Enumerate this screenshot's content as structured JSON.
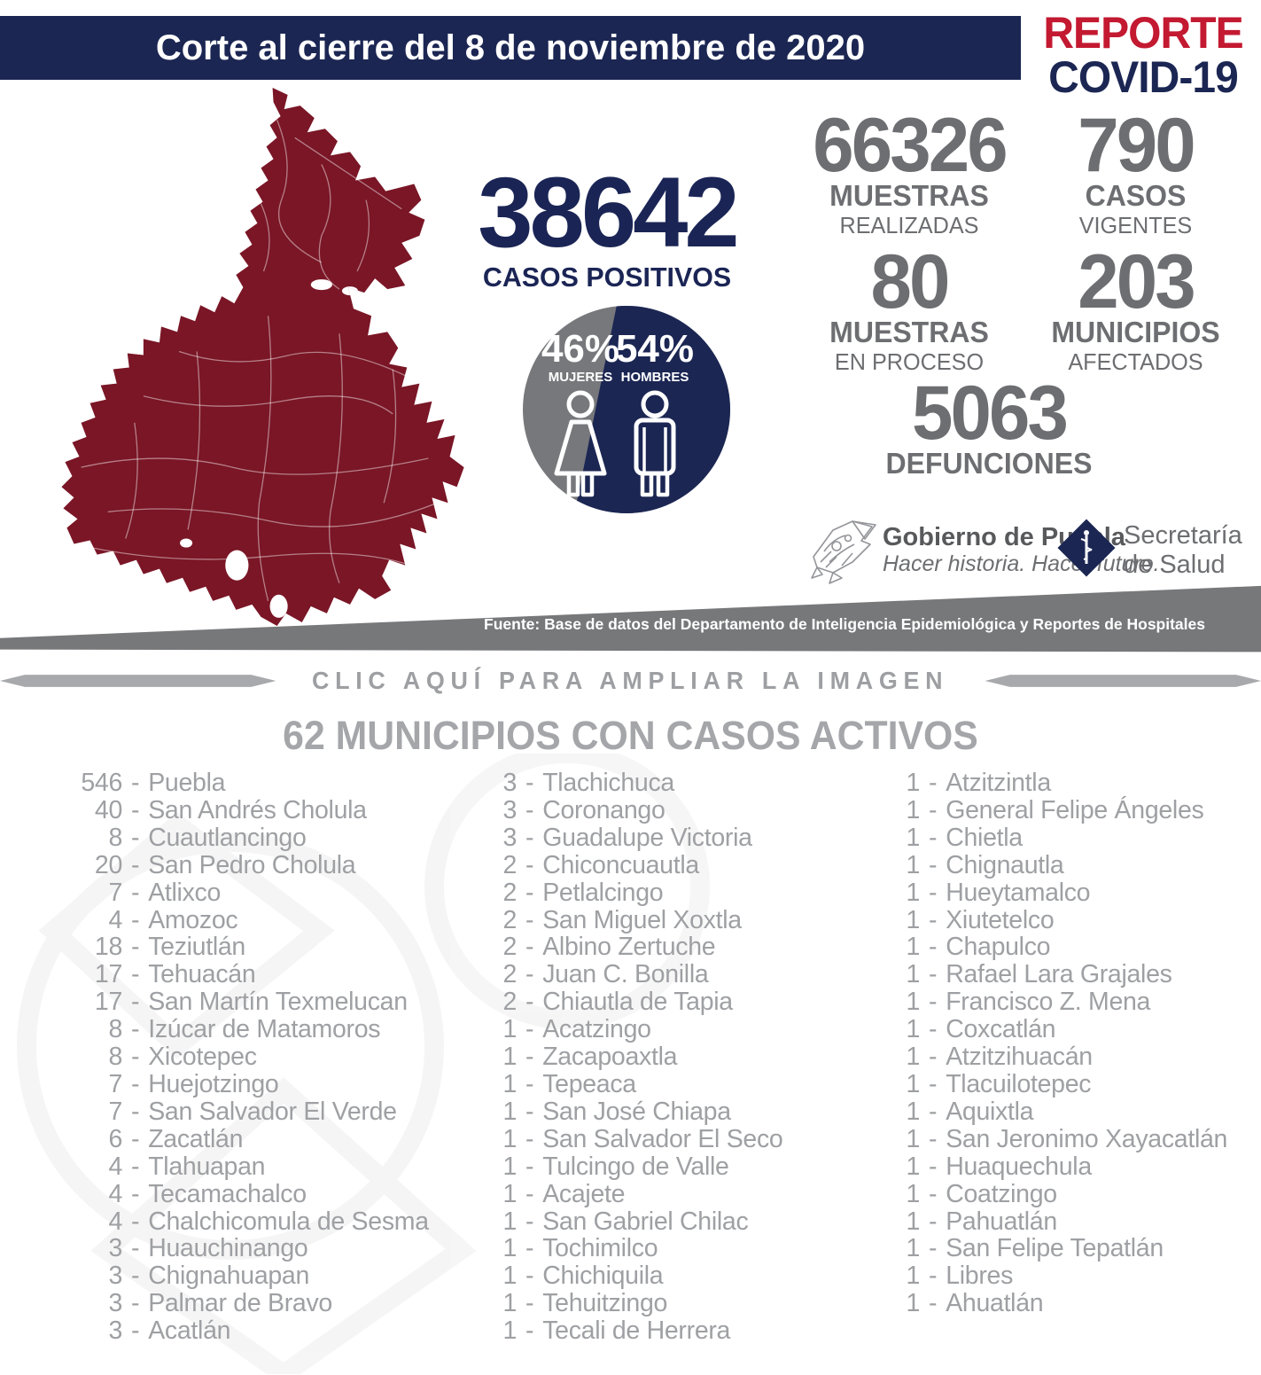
{
  "header": {
    "banner_regular": "Corte al cierre del",
    "banner_bold": "8 de noviembre de 2020",
    "report_line1": "REPORTE",
    "report_line2": "COVID-19"
  },
  "hero": {
    "positives": {
      "value": "38642",
      "label": "CASOS POSITIVOS"
    },
    "gender": {
      "female_pct": "46%",
      "female_label": "MUJERES",
      "male_pct": "54%",
      "male_label": "HOMBRES"
    },
    "stats": [
      {
        "value": "66326",
        "label": "MUESTRAS",
        "sublabel": "REALIZADAS"
      },
      {
        "value": "790",
        "label": "CASOS",
        "sublabel": "VIGENTES"
      },
      {
        "value": "80",
        "label": "MUESTRAS",
        "sublabel": "EN PROCESO"
      },
      {
        "value": "203",
        "label": "MUNICIPIOS",
        "sublabel": "AFECTADOS"
      }
    ],
    "deaths": {
      "value": "5063",
      "label": "DEFUNCIONES"
    }
  },
  "logos": {
    "gobierno_title": "Gobierno de Puebla",
    "gobierno_tagline": "Hacer historia. Hacer futuro.",
    "salud_line1": "Secretaría",
    "salud_line2": "de Salud"
  },
  "source_band": {
    "text": "Fuente: Base de datos del Departamento de Inteligencia Epidemiológica y Reportes de Hospitales"
  },
  "expand_cta": {
    "label": "CLIC AQUÍ PARA AMPLIAR LA IMAGEN"
  },
  "list_section": {
    "title": "62 MUNICIPIOS CON CASOS ACTIVOS",
    "columns": [
      {
        "items": [
          {
            "count": "546",
            "name": "Puebla"
          },
          {
            "count": "40",
            "name": "San Andrés Cholula"
          },
          {
            "count": "8",
            "name": "Cuautlancingo"
          },
          {
            "count": "20",
            "name": "San Pedro Cholula"
          },
          {
            "count": "7",
            "name": "Atlixco"
          },
          {
            "count": "4",
            "name": "Amozoc"
          },
          {
            "count": "18",
            "name": "Teziutlán"
          },
          {
            "count": "17",
            "name": "Tehuacán"
          },
          {
            "count": "17",
            "name": "San Martín Texmelucan"
          },
          {
            "count": "8",
            "name": "Izúcar de Matamoros"
          },
          {
            "count": "8",
            "name": "Xicotepec"
          },
          {
            "count": "7",
            "name": "Huejotzingo"
          },
          {
            "count": "7",
            "name": "San Salvador El Verde"
          },
          {
            "count": "6",
            "name": "Zacatlán"
          },
          {
            "count": "4",
            "name": "Tlahuapan"
          },
          {
            "count": "4",
            "name": "Tecamachalco"
          },
          {
            "count": "4",
            "name": "Chalchicomula de Sesma"
          },
          {
            "count": "3",
            "name": "Huauchinango"
          },
          {
            "count": "3",
            "name": "Chignahuapan"
          },
          {
            "count": "3",
            "name": "Palmar de Bravo"
          },
          {
            "count": "3",
            "name": "Acatlán"
          }
        ]
      },
      {
        "items": [
          {
            "count": "3",
            "name": "Tlachichuca"
          },
          {
            "count": "3",
            "name": "Coronango"
          },
          {
            "count": "3",
            "name": "Guadalupe Victoria"
          },
          {
            "count": "2",
            "name": "Chiconcuautla"
          },
          {
            "count": "2",
            "name": "Petlalcingo"
          },
          {
            "count": "2",
            "name": "San Miguel Xoxtla"
          },
          {
            "count": "2",
            "name": "Albino Zertuche"
          },
          {
            "count": "2",
            "name": "Juan C. Bonilla"
          },
          {
            "count": "2",
            "name": "Chiautla de Tapia"
          },
          {
            "count": "1",
            "name": "Acatzingo"
          },
          {
            "count": "1",
            "name": "Zacapoaxtla"
          },
          {
            "count": "1",
            "name": "Tepeaca"
          },
          {
            "count": "1",
            "name": "San José Chiapa"
          },
          {
            "count": "1",
            "name": "San Salvador El Seco"
          },
          {
            "count": "1",
            "name": "Tulcingo de Valle"
          },
          {
            "count": "1",
            "name": "Acajete"
          },
          {
            "count": "1",
            "name": "San Gabriel Chilac"
          },
          {
            "count": "1",
            "name": "Tochimilco"
          },
          {
            "count": "1",
            "name": "Chichiquila"
          },
          {
            "count": "1",
            "name": "Tehuitzingo"
          },
          {
            "count": "1",
            "name": "Tecali de Herrera"
          }
        ]
      },
      {
        "items": [
          {
            "count": "1",
            "name": "Atzitzintla"
          },
          {
            "count": "1",
            "name": "General Felipe Ángeles"
          },
          {
            "count": "1",
            "name": "Chietla"
          },
          {
            "count": "1",
            "name": "Chignautla"
          },
          {
            "count": "1",
            "name": "Hueytamalco"
          },
          {
            "count": "1",
            "name": "Xiutetelco"
          },
          {
            "count": "1",
            "name": "Chapulco"
          },
          {
            "count": "1",
            "name": "Rafael Lara Grajales"
          },
          {
            "count": "1",
            "name": "Francisco Z. Mena"
          },
          {
            "count": "1",
            "name": "Coxcatlán"
          },
          {
            "count": "1",
            "name": "Atzitzihuacán"
          },
          {
            "count": "1",
            "name": "Tlacuilotepec"
          },
          {
            "count": "1",
            "name": "Aquixtla"
          },
          {
            "count": "1",
            "name": "San Jeronimo Xayacatlán"
          },
          {
            "count": "1",
            "name": "Huaquechula"
          },
          {
            "count": "1",
            "name": "Coatzingo"
          },
          {
            "count": "1",
            "name": "Pahuatlán"
          },
          {
            "count": "1",
            "name": "San Felipe Tepatlán"
          },
          {
            "count": "1",
            "name": "Libres"
          },
          {
            "count": "1",
            "name": "Ahuatlán"
          }
        ]
      }
    ]
  },
  "colors": {
    "navy": "#1b2653",
    "red": "#c31931",
    "map_maroon": "#7a1626",
    "stat_gray": "#6d6e71",
    "list_gray": "#9ea0a3",
    "band_gray": "#77787a"
  }
}
